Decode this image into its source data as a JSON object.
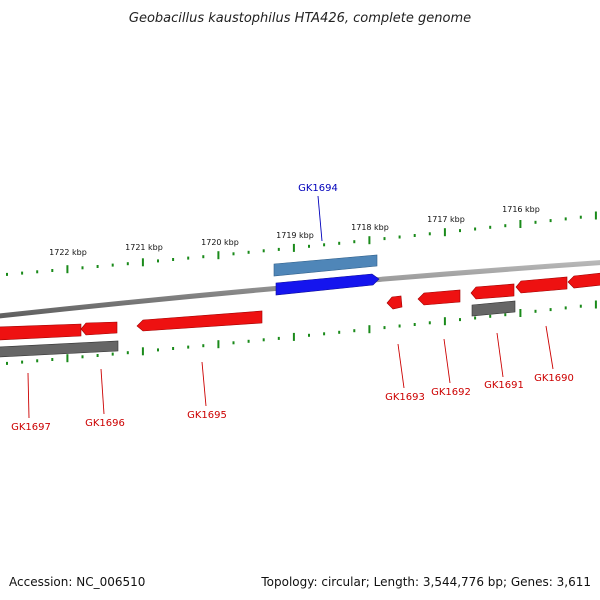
{
  "title": "Geobacillus kaustophilus HTA426, complete genome",
  "footer": {
    "accession": "Accession: NC_006510",
    "summary": "Topology: circular; Length: 3,544,776 bp; Genes: 3,611"
  },
  "colors": {
    "backbone": "#8c8c8c",
    "tick": "#1a8a1a",
    "gene_red": "#ee1111",
    "gene_gray": "#666666",
    "gene_blue": "#1515ee",
    "gene_blue_light": "#4f86b8",
    "label_red": "#cc0000",
    "label_blue": "#0000bb"
  },
  "kbp_labels": [
    "1722 kbp",
    "1721 kbp",
    "1720 kbp",
    "1719 kbp",
    "1718 kbp",
    "1717 kbp",
    "1716 kbp"
  ],
  "genes": [
    {
      "label": "GK1697",
      "color": "red"
    },
    {
      "label": "GK1696",
      "color": "red"
    },
    {
      "label": "GK1695",
      "color": "red"
    },
    {
      "label": "GK1694",
      "color": "blue"
    },
    {
      "label": "GK1693",
      "color": "red"
    },
    {
      "label": "GK1692",
      "color": "red"
    },
    {
      "label": "GK1691",
      "color": "red"
    },
    {
      "label": "GK1690",
      "color": "red"
    }
  ]
}
